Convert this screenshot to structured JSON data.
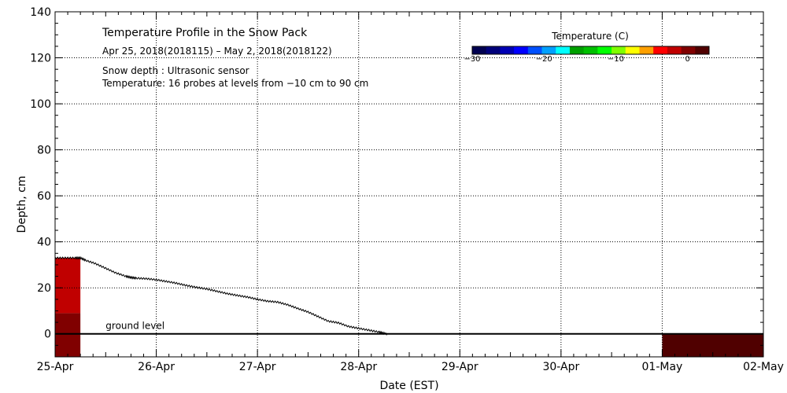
{
  "chart_data": {
    "type": "heatmap",
    "title": "Temperature Profile in the Snow Pack",
    "subtitle": "Apr 25, 2018(2018115) – May  2, 2018(2018122)",
    "notes": [
      "Snow depth : Ultrasonic sensor",
      "Temperature: 16 probes at levels from −10 cm to 90 cm"
    ],
    "xlabel": "Date (EST)",
    "ylabel": "Depth, cm",
    "x_ticks": [
      "25-Apr",
      "26-Apr",
      "27-Apr",
      "28-Apr",
      "29-Apr",
      "30-Apr",
      "01-May",
      "02-May"
    ],
    "xlim_days": [
      0,
      7
    ],
    "y_ticks": [
      0,
      20,
      40,
      60,
      80,
      100,
      120,
      140
    ],
    "ylim": [
      -10,
      140
    ],
    "grid": true,
    "ground_level_label": "ground level",
    "ground_level_cm": 0,
    "colorbar": {
      "title": "Temperature (C)",
      "min": -30,
      "max": 3,
      "ticks": [
        -30,
        -20,
        -10,
        0
      ],
      "tick_labels": [
        "−30",
        "−20",
        "−10",
        "0"
      ],
      "colors": [
        "#000050",
        "#00007a",
        "#0000b4",
        "#0000ff",
        "#0050ff",
        "#00a0ff",
        "#00ffff",
        "#00a000",
        "#00c000",
        "#00ff00",
        "#80ff00",
        "#ffff00",
        "#ffa000",
        "#ff0000",
        "#c00000",
        "#800000",
        "#500000"
      ]
    },
    "snow_depth_series": {
      "name": "Snow depth",
      "x_days": [
        0.0,
        0.1,
        0.2,
        0.25,
        0.3,
        0.4,
        0.5,
        0.6,
        0.7,
        0.75,
        0.8,
        0.9,
        1.0,
        1.1,
        1.2,
        1.3,
        1.4,
        1.5,
        1.6,
        1.7,
        1.8,
        1.9,
        2.0,
        2.1,
        2.2,
        2.3,
        2.4,
        2.5,
        2.6,
        2.7,
        2.8,
        2.9,
        3.0,
        3.1,
        3.2,
        3.25,
        3.28
      ],
      "depth_cm": [
        33,
        33,
        33,
        33,
        32,
        30.5,
        28.5,
        26.5,
        25,
        24.5,
        24.2,
        24,
        23.5,
        22.8,
        22,
        21,
        20.2,
        19.5,
        18.5,
        17.5,
        16.7,
        16,
        15,
        14.2,
        13.8,
        12.6,
        11,
        9.5,
        7.5,
        5.5,
        4.8,
        3.2,
        2.4,
        1.6,
        0.8,
        0.2,
        0
      ]
    },
    "temperature_cells": [
      {
        "x_start_days": 0.0,
        "x_end_days": 0.25,
        "y_bottom_cm": -10,
        "y_top_cm": 9,
        "temp_c": 0.5
      },
      {
        "x_start_days": 0.0,
        "x_end_days": 0.25,
        "y_bottom_cm": 9,
        "y_top_cm": 33,
        "temp_c": -1
      },
      {
        "x_start_days": 6.0,
        "x_end_days": 7.0,
        "y_bottom_cm": -10,
        "y_top_cm": 0,
        "temp_c": 2
      }
    ]
  }
}
